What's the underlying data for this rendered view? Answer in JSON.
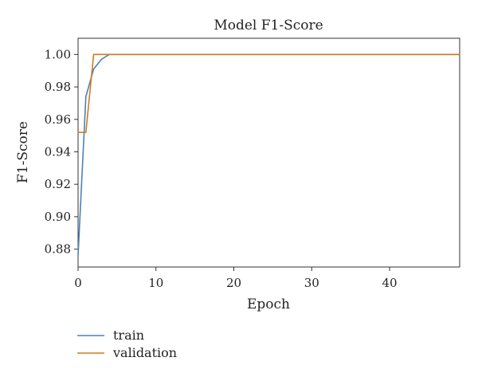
{
  "chart_data": {
    "type": "line",
    "title": "Model F1-Score",
    "xlabel": "Epoch",
    "ylabel": "F1-Score",
    "xlim": [
      0,
      49
    ],
    "ylim": [
      0.869,
      1.01
    ],
    "xticks": [
      0,
      10,
      20,
      30,
      40
    ],
    "xtick_labels": [
      "0",
      "10",
      "20",
      "30",
      "40"
    ],
    "yticks": [
      0.88,
      0.9,
      0.92,
      0.94,
      0.96,
      0.98,
      1.0
    ],
    "ytick_labels": [
      "0.88",
      "0.90",
      "0.92",
      "0.94",
      "0.96",
      "0.98",
      "1.00"
    ],
    "grid": false,
    "legend_position": "bottom-left",
    "series": [
      {
        "name": "train",
        "color": "#4c82b8",
        "points": [
          [
            0,
            0.876
          ],
          [
            1,
            0.974
          ],
          [
            2,
            0.991
          ],
          [
            3,
            0.997
          ],
          [
            4,
            1.0
          ],
          [
            49,
            1.0
          ]
        ]
      },
      {
        "name": "validation",
        "color": "#d07b21",
        "points": [
          [
            0,
            0.952
          ],
          [
            1,
            0.952
          ],
          [
            2,
            1.0
          ],
          [
            49,
            1.0
          ]
        ]
      }
    ]
  }
}
